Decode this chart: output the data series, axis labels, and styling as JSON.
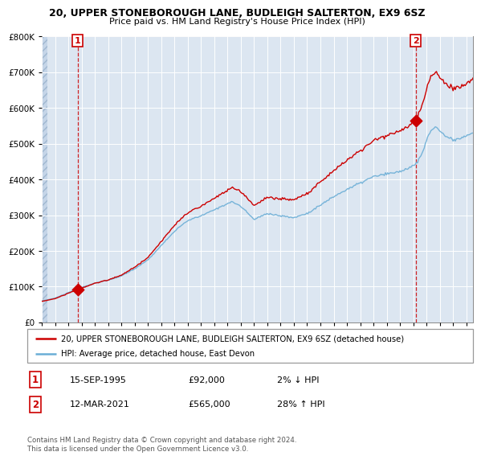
{
  "title1": "20, UPPER STONEBOROUGH LANE, BUDLEIGH SALTERTON, EX9 6SZ",
  "title2": "Price paid vs. HM Land Registry's House Price Index (HPI)",
  "legend_line1": "20, UPPER STONEBOROUGH LANE, BUDLEIGH SALTERTON, EX9 6SZ (detached house)",
  "legend_line2": "HPI: Average price, detached house, East Devon",
  "annotation1_date": "15-SEP-1995",
  "annotation1_price": "£92,000",
  "annotation1_hpi": "2% ↓ HPI",
  "annotation2_date": "12-MAR-2021",
  "annotation2_price": "£565,000",
  "annotation2_hpi": "28% ↑ HPI",
  "footer": "Contains HM Land Registry data © Crown copyright and database right 2024.\nThis data is licensed under the Open Government Licence v3.0.",
  "sale1_year": 1995.71,
  "sale1_value": 92000,
  "sale2_year": 2021.19,
  "sale2_value": 565000,
  "ylim": [
    0,
    800000
  ],
  "xlim_start": 1993.0,
  "xlim_end": 2025.5,
  "background_color": "#dce6f1",
  "grid_color": "#ffffff",
  "line_color_hpi": "#6baed6",
  "line_color_price": "#cc0000",
  "sale_marker_color": "#cc0000",
  "vline_color": "#cc0000"
}
